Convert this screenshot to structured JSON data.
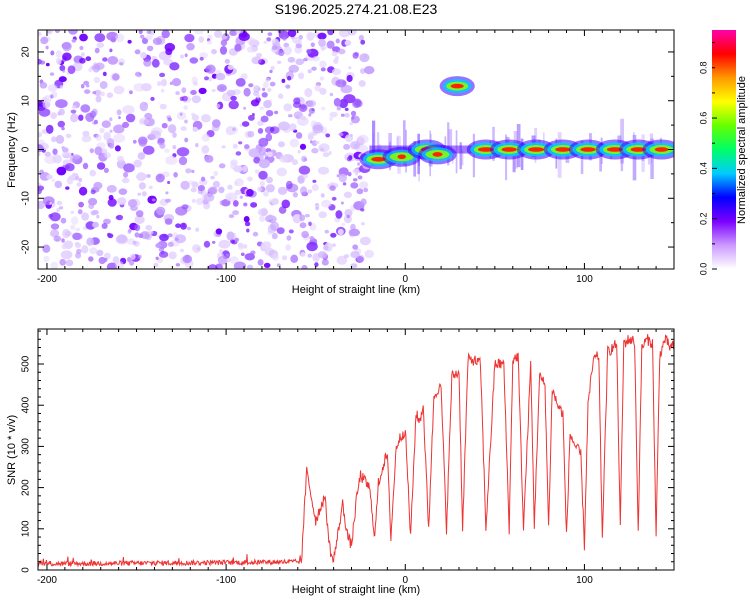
{
  "figure": {
    "title": "S196.2025.274.21.08.E23"
  },
  "chart_data": [
    {
      "type": "heatmap",
      "name": "spectrogram",
      "title": "S196.2025.274.21.08.E23",
      "xlabel": "Height of straight line (km)",
      "ylabel": "Frequency (Hz)",
      "xlim": [
        -205,
        150
      ],
      "ylim": [
        -24.5,
        24.5
      ],
      "xticks": [
        -200,
        -100,
        0,
        100
      ],
      "xtick_labels": [
        "-200",
        "-100",
        "0",
        "100"
      ],
      "yticks": [
        -20,
        -10,
        0,
        10,
        20
      ],
      "ytick_labels": [
        "-20",
        "-10",
        "0",
        "10",
        "20"
      ],
      "noise_region_x": [
        -205,
        -20
      ],
      "features": [
        {
          "label": "signal-blob",
          "x": -15,
          "freq": -2,
          "amplitude": 0.85
        },
        {
          "label": "signal-blob",
          "x": -2,
          "freq": -1.5,
          "amplitude": 0.5
        },
        {
          "label": "signal-blob",
          "x": 12,
          "freq": 0,
          "amplitude": 0.7
        },
        {
          "label": "signal-blob",
          "x": 18,
          "freq": -1,
          "amplitude": 0.6
        },
        {
          "label": "signal-blob",
          "x": 29,
          "freq": 13,
          "amplitude": 0.85
        },
        {
          "label": "signal-blob",
          "x": 45,
          "freq": 0,
          "amplitude": 0.95
        },
        {
          "label": "signal-blob",
          "x": 58,
          "freq": 0,
          "amplitude": 0.9
        },
        {
          "label": "signal-blob",
          "x": 73,
          "freq": 0,
          "amplitude": 0.95
        },
        {
          "label": "signal-blob",
          "x": 88,
          "freq": 0,
          "amplitude": 0.9
        },
        {
          "label": "signal-blob",
          "x": 102,
          "freq": 0,
          "amplitude": 0.9
        },
        {
          "label": "signal-blob",
          "x": 117,
          "freq": 0,
          "amplitude": 0.95
        },
        {
          "label": "signal-blob",
          "x": 130,
          "freq": 0,
          "amplitude": 0.9
        },
        {
          "label": "signal-blob",
          "x": 143,
          "freq": 0,
          "amplitude": 0.8
        }
      ],
      "colorbar": {
        "label": "Normalized spectral amplitude",
        "range": [
          0,
          0.95
        ],
        "ticks": [
          0.0,
          0.2,
          0.4,
          0.6,
          0.8
        ],
        "tick_labels": [
          "0.0",
          "0.2",
          "0.4",
          "0.6",
          "0.8"
        ],
        "colors": [
          "#ffffff",
          "#cc99ff",
          "#7a00ff",
          "#0000ff",
          "#00ccff",
          "#00ff66",
          "#66ff00",
          "#ffff00",
          "#ff9900",
          "#ff0000",
          "#ff00aa"
        ]
      }
    },
    {
      "type": "line",
      "name": "snr",
      "xlabel": "Height of straight line (km)",
      "ylabel": "SNR (10 * v/v)",
      "xlim": [
        -205,
        150
      ],
      "ylim": [
        0,
        585
      ],
      "xticks": [
        -200,
        -100,
        0,
        100
      ],
      "xtick_labels": [
        "-200",
        "-100",
        "0",
        "100"
      ],
      "yticks": [
        0,
        100,
        200,
        300,
        400,
        500
      ],
      "ytick_labels": [
        "0",
        "100",
        "200",
        "300",
        "400",
        "500"
      ],
      "series": [
        {
          "name": "SNR",
          "color": "#ee3333",
          "x": [
            -205,
            -100,
            -58,
            -55,
            -50,
            -45,
            -42,
            -40,
            -35,
            -32,
            -30,
            -27,
            -25,
            -20,
            -17,
            -15,
            -12,
            -10,
            -8,
            -5,
            -3,
            0,
            3,
            6,
            8,
            10,
            13,
            16,
            18,
            20,
            23,
            26,
            30,
            32,
            35,
            38,
            42,
            45,
            50,
            55,
            58,
            60,
            63,
            66,
            70,
            72,
            75,
            78,
            80,
            82,
            85,
            88,
            90,
            92,
            95,
            98,
            100,
            102,
            105,
            108,
            110,
            113,
            116,
            118,
            120,
            122,
            125,
            128,
            130,
            132,
            135,
            138,
            140,
            142,
            145,
            148,
            150
          ],
          "values": [
            15,
            18,
            20,
            240,
            120,
            180,
            50,
            20,
            160,
            80,
            60,
            180,
            230,
            200,
            80,
            210,
            260,
            280,
            80,
            300,
            320,
            340,
            80,
            380,
            360,
            400,
            100,
            420,
            440,
            440,
            100,
            470,
            480,
            100,
            510,
            510,
            500,
            100,
            500,
            500,
            100,
            510,
            520,
            100,
            500,
            110,
            470,
            450,
            100,
            440,
            400,
            380,
            80,
            330,
            300,
            280,
            60,
            400,
            510,
            520,
            80,
            530,
            540,
            550,
            100,
            550,
            560,
            555,
            90,
            540,
            560,
            550,
            80,
            520,
            560,
            540,
            545
          ]
        }
      ]
    }
  ]
}
